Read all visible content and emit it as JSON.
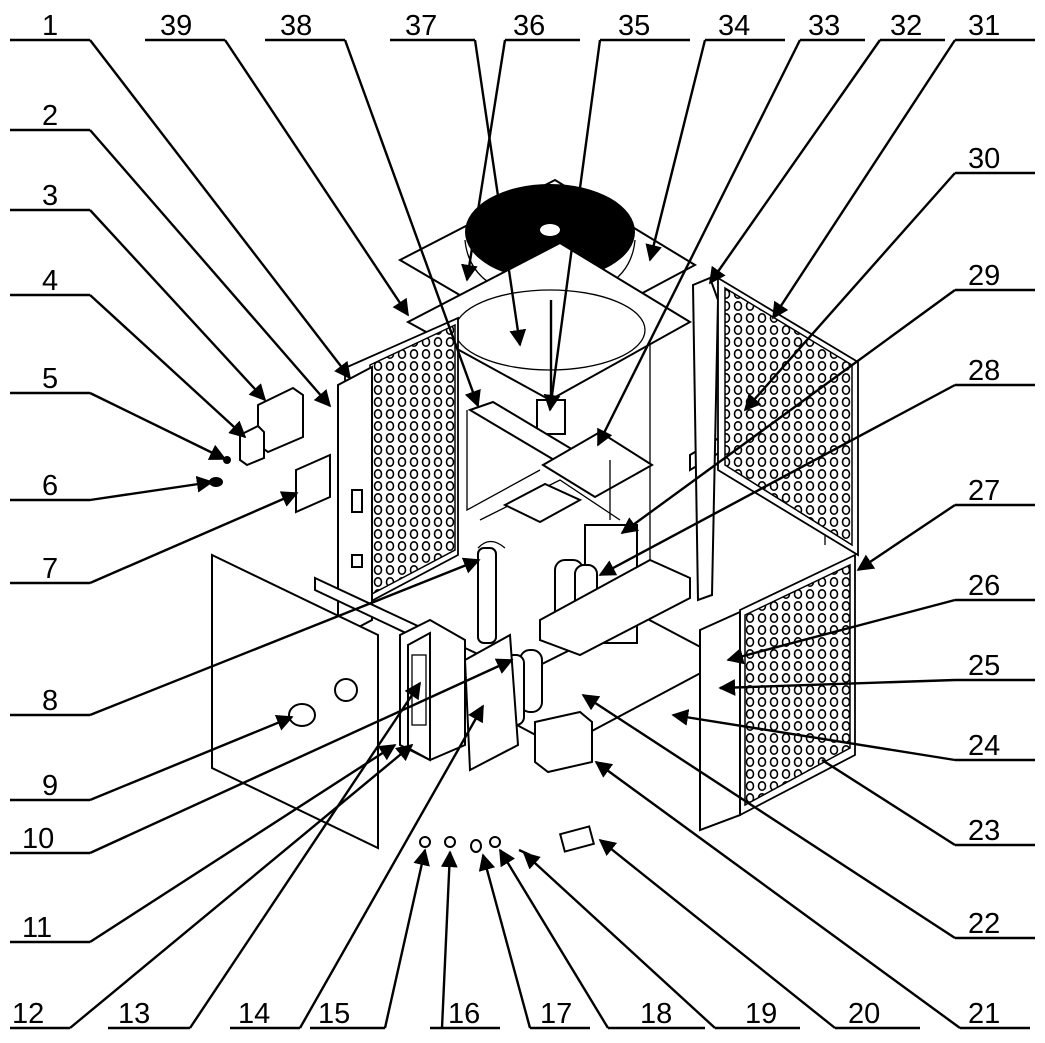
{
  "diagram": {
    "labels": [
      "1",
      "2",
      "3",
      "4",
      "5",
      "6",
      "7",
      "8",
      "9",
      "10",
      "11",
      "12",
      "13",
      "14",
      "15",
      "16",
      "17",
      "18",
      "19",
      "20",
      "21",
      "22",
      "23",
      "24",
      "25",
      "26",
      "27",
      "28",
      "29",
      "30",
      "31",
      "32",
      "33",
      "34",
      "35",
      "36",
      "37",
      "38",
      "39"
    ]
  }
}
